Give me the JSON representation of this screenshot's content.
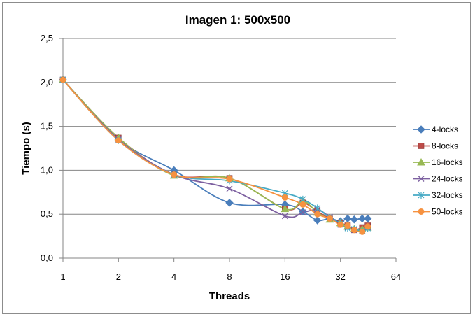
{
  "chart_data": {
    "type": "line",
    "title": "Imagen 1: 500x500",
    "xlabel": "Threads",
    "ylabel": "Tiempo (s)",
    "x_scale": "log2",
    "xlim": [
      1,
      64
    ],
    "ylim": [
      0,
      2.5
    ],
    "x_ticks": [
      "1",
      "2",
      "4",
      "8",
      "16",
      "32",
      "64"
    ],
    "x_tick_values": [
      1,
      2,
      4,
      8,
      16,
      32,
      64
    ],
    "y_ticks": [
      "0,0",
      "0,5",
      "1,0",
      "1,5",
      "2,0",
      "2,5"
    ],
    "y_tick_values": [
      0,
      0.5,
      1.0,
      1.5,
      2.0,
      2.5
    ],
    "grid": "horizontal",
    "smooth": true,
    "legend_position": "right",
    "series": [
      {
        "name": "4-locks",
        "color": "#4a7ebb",
        "marker": "diamond",
        "x": [
          1,
          2,
          4,
          8,
          16,
          20,
          24,
          28,
          32,
          35,
          38,
          42,
          45
        ],
        "y": [
          2.03,
          1.35,
          1.0,
          0.63,
          0.61,
          0.53,
          0.43,
          0.45,
          0.42,
          0.45,
          0.44,
          0.45,
          0.45
        ]
      },
      {
        "name": "8-locks",
        "color": "#be4b48",
        "marker": "square",
        "x": [
          1,
          2,
          4,
          8,
          16,
          20,
          24,
          28,
          32,
          35,
          38,
          42,
          45
        ],
        "y": [
          2.03,
          1.37,
          0.95,
          0.91,
          0.56,
          0.63,
          0.53,
          0.45,
          0.4,
          0.37,
          0.32,
          0.35,
          0.37
        ]
      },
      {
        "name": "16-locks",
        "color": "#98b954",
        "marker": "triangle",
        "x": [
          1,
          2,
          4,
          8,
          16,
          20,
          24,
          28,
          32,
          35,
          38,
          42,
          45
        ],
        "y": [
          2.03,
          1.37,
          0.94,
          0.91,
          0.56,
          0.65,
          0.52,
          0.44,
          0.4,
          0.36,
          0.33,
          0.33,
          0.35
        ]
      },
      {
        "name": "24-locks",
        "color": "#7d60a0",
        "marker": "x",
        "x": [
          1,
          2,
          4,
          8,
          16,
          20,
          24,
          28,
          32,
          35,
          38,
          42,
          45
        ],
        "y": [
          2.03,
          1.35,
          0.95,
          0.79,
          0.48,
          0.52,
          0.55,
          0.47,
          0.38,
          0.35,
          0.32,
          0.31,
          0.35
        ]
      },
      {
        "name": "32-locks",
        "color": "#46aac5",
        "marker": "star",
        "x": [
          1,
          2,
          4,
          8,
          16,
          20,
          24,
          28,
          32,
          35,
          38,
          42,
          45
        ],
        "y": [
          2.03,
          1.34,
          0.95,
          0.88,
          0.74,
          0.67,
          0.57,
          0.46,
          0.39,
          0.34,
          0.33,
          0.31,
          0.34
        ]
      },
      {
        "name": "50-locks",
        "color": "#f69240",
        "marker": "circle",
        "x": [
          1,
          2,
          4,
          8,
          16,
          20,
          24,
          28,
          32,
          35,
          38,
          42,
          45
        ],
        "y": [
          2.03,
          1.34,
          0.95,
          0.9,
          0.69,
          0.61,
          0.5,
          0.45,
          0.38,
          0.37,
          0.32,
          0.3,
          0.36
        ]
      }
    ]
  }
}
